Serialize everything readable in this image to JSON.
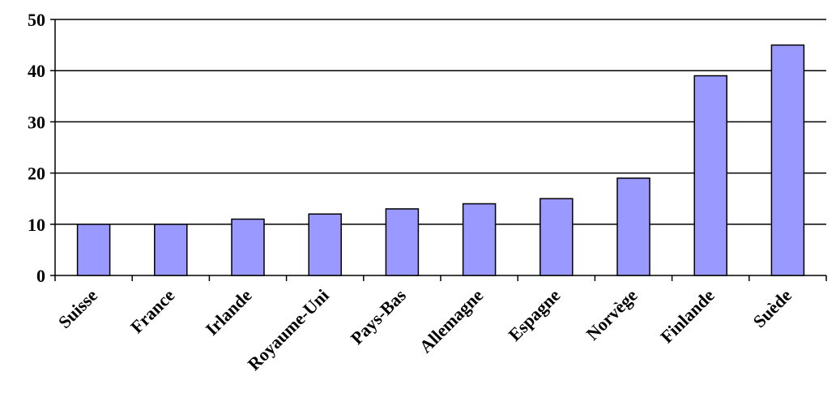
{
  "chart_data": {
    "type": "bar",
    "categories": [
      "Suisse",
      "France",
      "Irlande",
      "Royaume-Uni",
      "Pays-Bas",
      "Allemagne",
      "Espagne",
      "Norvège",
      "Finlande",
      "Suède"
    ],
    "values": [
      10,
      10,
      11,
      12,
      13,
      14,
      15,
      19,
      39,
      45
    ],
    "ylim": [
      0,
      50
    ],
    "yticks": [
      0,
      10,
      20,
      30,
      40,
      50
    ],
    "grid": true,
    "legend": "none",
    "colors": {
      "bar_fill": "#9999FF",
      "bar_stroke": "#000000",
      "grid": "#000000"
    }
  }
}
